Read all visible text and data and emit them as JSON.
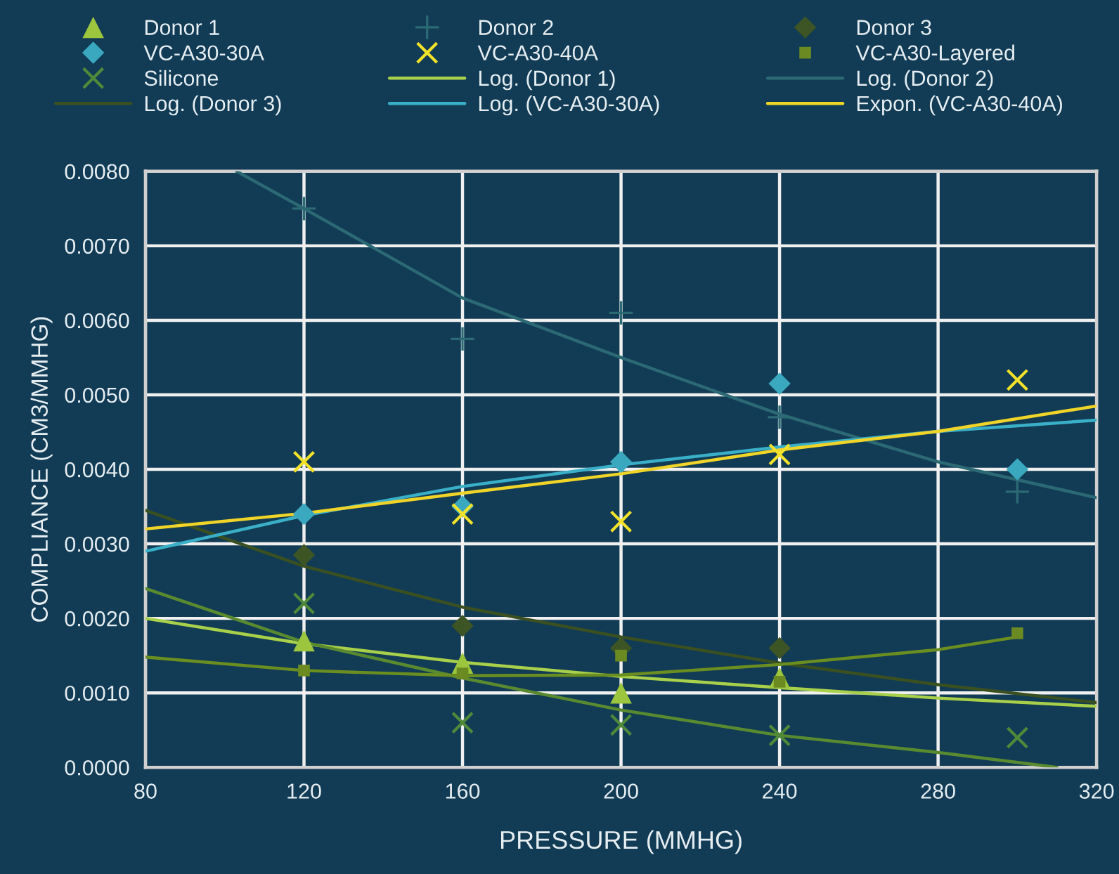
{
  "chart_data": {
    "type": "scatter",
    "xlabel": "PRESSURE (MMHG)",
    "ylabel": "COMPLIANCE (CM3/MMHG)",
    "xlim": [
      80,
      320
    ],
    "xticks": [
      80,
      120,
      160,
      200,
      240,
      280,
      320
    ],
    "ylim": [
      0,
      0.008
    ],
    "yticks": [
      {
        "value": 0,
        "label": "0.0000"
      },
      {
        "value": 0.001,
        "label": "0.0010"
      },
      {
        "value": 0.002,
        "label": "0.0020"
      },
      {
        "value": 0.003,
        "label": "0.0030"
      },
      {
        "value": 0.004,
        "label": "0.0040"
      },
      {
        "value": 0.005,
        "label": "0.0050"
      },
      {
        "value": 0.006,
        "label": "0.0060"
      },
      {
        "value": 0.007,
        "label": "0.0070"
      },
      {
        "value": 0.008,
        "label": "0.0080"
      }
    ],
    "grid": true,
    "legend": "top",
    "series": [
      {
        "name": "Donor 1",
        "marker": "triangle",
        "color": "#9cc63e",
        "x": [
          120,
          160,
          200,
          240
        ],
        "values": [
          0.0017,
          0.0014,
          0.001,
          0.0012
        ]
      },
      {
        "name": "Donor 2",
        "marker": "plus",
        "color": "#2b6a74",
        "x": [
          120,
          160,
          200,
          240,
          300
        ],
        "values": [
          0.0075,
          0.00575,
          0.0061,
          0.0047,
          0.0037
        ]
      },
      {
        "name": "Donor 3",
        "marker": "diamond",
        "color": "#3d5424",
        "x": [
          120,
          160,
          200,
          240
        ],
        "values": [
          0.00285,
          0.0019,
          0.0016,
          0.0016
        ]
      },
      {
        "name": "VC-A30-30A",
        "marker": "diamond",
        "color": "#3aa9bf",
        "x": [
          120,
          160,
          200,
          240,
          300
        ],
        "values": [
          0.0034,
          0.0035,
          0.0041,
          0.00515,
          0.004
        ]
      },
      {
        "name": "VC-A30-40A",
        "marker": "cross",
        "color": "#f2e229",
        "x": [
          120,
          160,
          200,
          240,
          300
        ],
        "values": [
          0.0041,
          0.0034,
          0.0033,
          0.0042,
          0.0052
        ]
      },
      {
        "name": "VC-A30-Layered",
        "marker": "square",
        "color": "#6b8a22",
        "x": [
          120,
          160,
          200,
          240,
          300
        ],
        "values": [
          0.0013,
          0.00126,
          0.0015,
          0.00115,
          0.0018
        ]
      },
      {
        "name": "Silicone",
        "marker": "cross",
        "color": "#4f8a3a",
        "x": [
          120,
          160,
          200,
          240,
          300
        ],
        "values": [
          0.0022,
          0.0006,
          0.00057,
          0.00043,
          0.0004
        ]
      },
      {
        "name": "Log. (Donor 1)",
        "type": "line",
        "color": "#a8d04a",
        "x": [
          80,
          120,
          160,
          200,
          240,
          280,
          320
        ],
        "values": [
          0.002,
          0.00166,
          0.00141,
          0.00122,
          0.00107,
          0.00093,
          0.00082
        ]
      },
      {
        "name": "Log. (Donor 2)",
        "type": "line",
        "color": "#2b6a74",
        "x": [
          103,
          120,
          160,
          200,
          240,
          280,
          320
        ],
        "values": [
          0.008,
          0.0075,
          0.0063,
          0.0055,
          0.00474,
          0.0041,
          0.00362
        ]
      },
      {
        "name": "Log. (Donor 3)",
        "type": "line",
        "color": "#3a5020",
        "x": [
          80,
          120,
          160,
          200,
          240,
          280,
          320
        ],
        "values": [
          0.00345,
          0.0027,
          0.00215,
          0.00175,
          0.0014,
          0.00111,
          0.00087
        ]
      },
      {
        "name": "Log. (VC-A30-30A)",
        "type": "line",
        "color": "#3ab0c8",
        "x": [
          80,
          120,
          160,
          200,
          240,
          280,
          320
        ],
        "values": [
          0.0029,
          0.00338,
          0.00377,
          0.00406,
          0.0043,
          0.00451,
          0.00466
        ]
      },
      {
        "name": "Expon. (VC-A30-40A)",
        "type": "line",
        "color": "#f0d428",
        "x": [
          80,
          120,
          160,
          200,
          240,
          280,
          320
        ],
        "values": [
          0.0032,
          0.00341,
          0.00368,
          0.00394,
          0.00426,
          0.00451,
          0.00485
        ]
      },
      {
        "type": "line",
        "color": "#5a8a30",
        "x": [
          80,
          120,
          160,
          200,
          240,
          280,
          310
        ],
        "values": [
          0.0024,
          0.00168,
          0.0012,
          0.00077,
          0.00043,
          0.0002,
          0.0
        ]
      },
      {
        "type": "line",
        "color": "#6b8e20",
        "x": [
          80,
          120,
          160,
          200,
          240,
          280,
          300
        ],
        "values": [
          0.00148,
          0.0013,
          0.00123,
          0.00124,
          0.00138,
          0.00158,
          0.00175
        ]
      }
    ]
  }
}
